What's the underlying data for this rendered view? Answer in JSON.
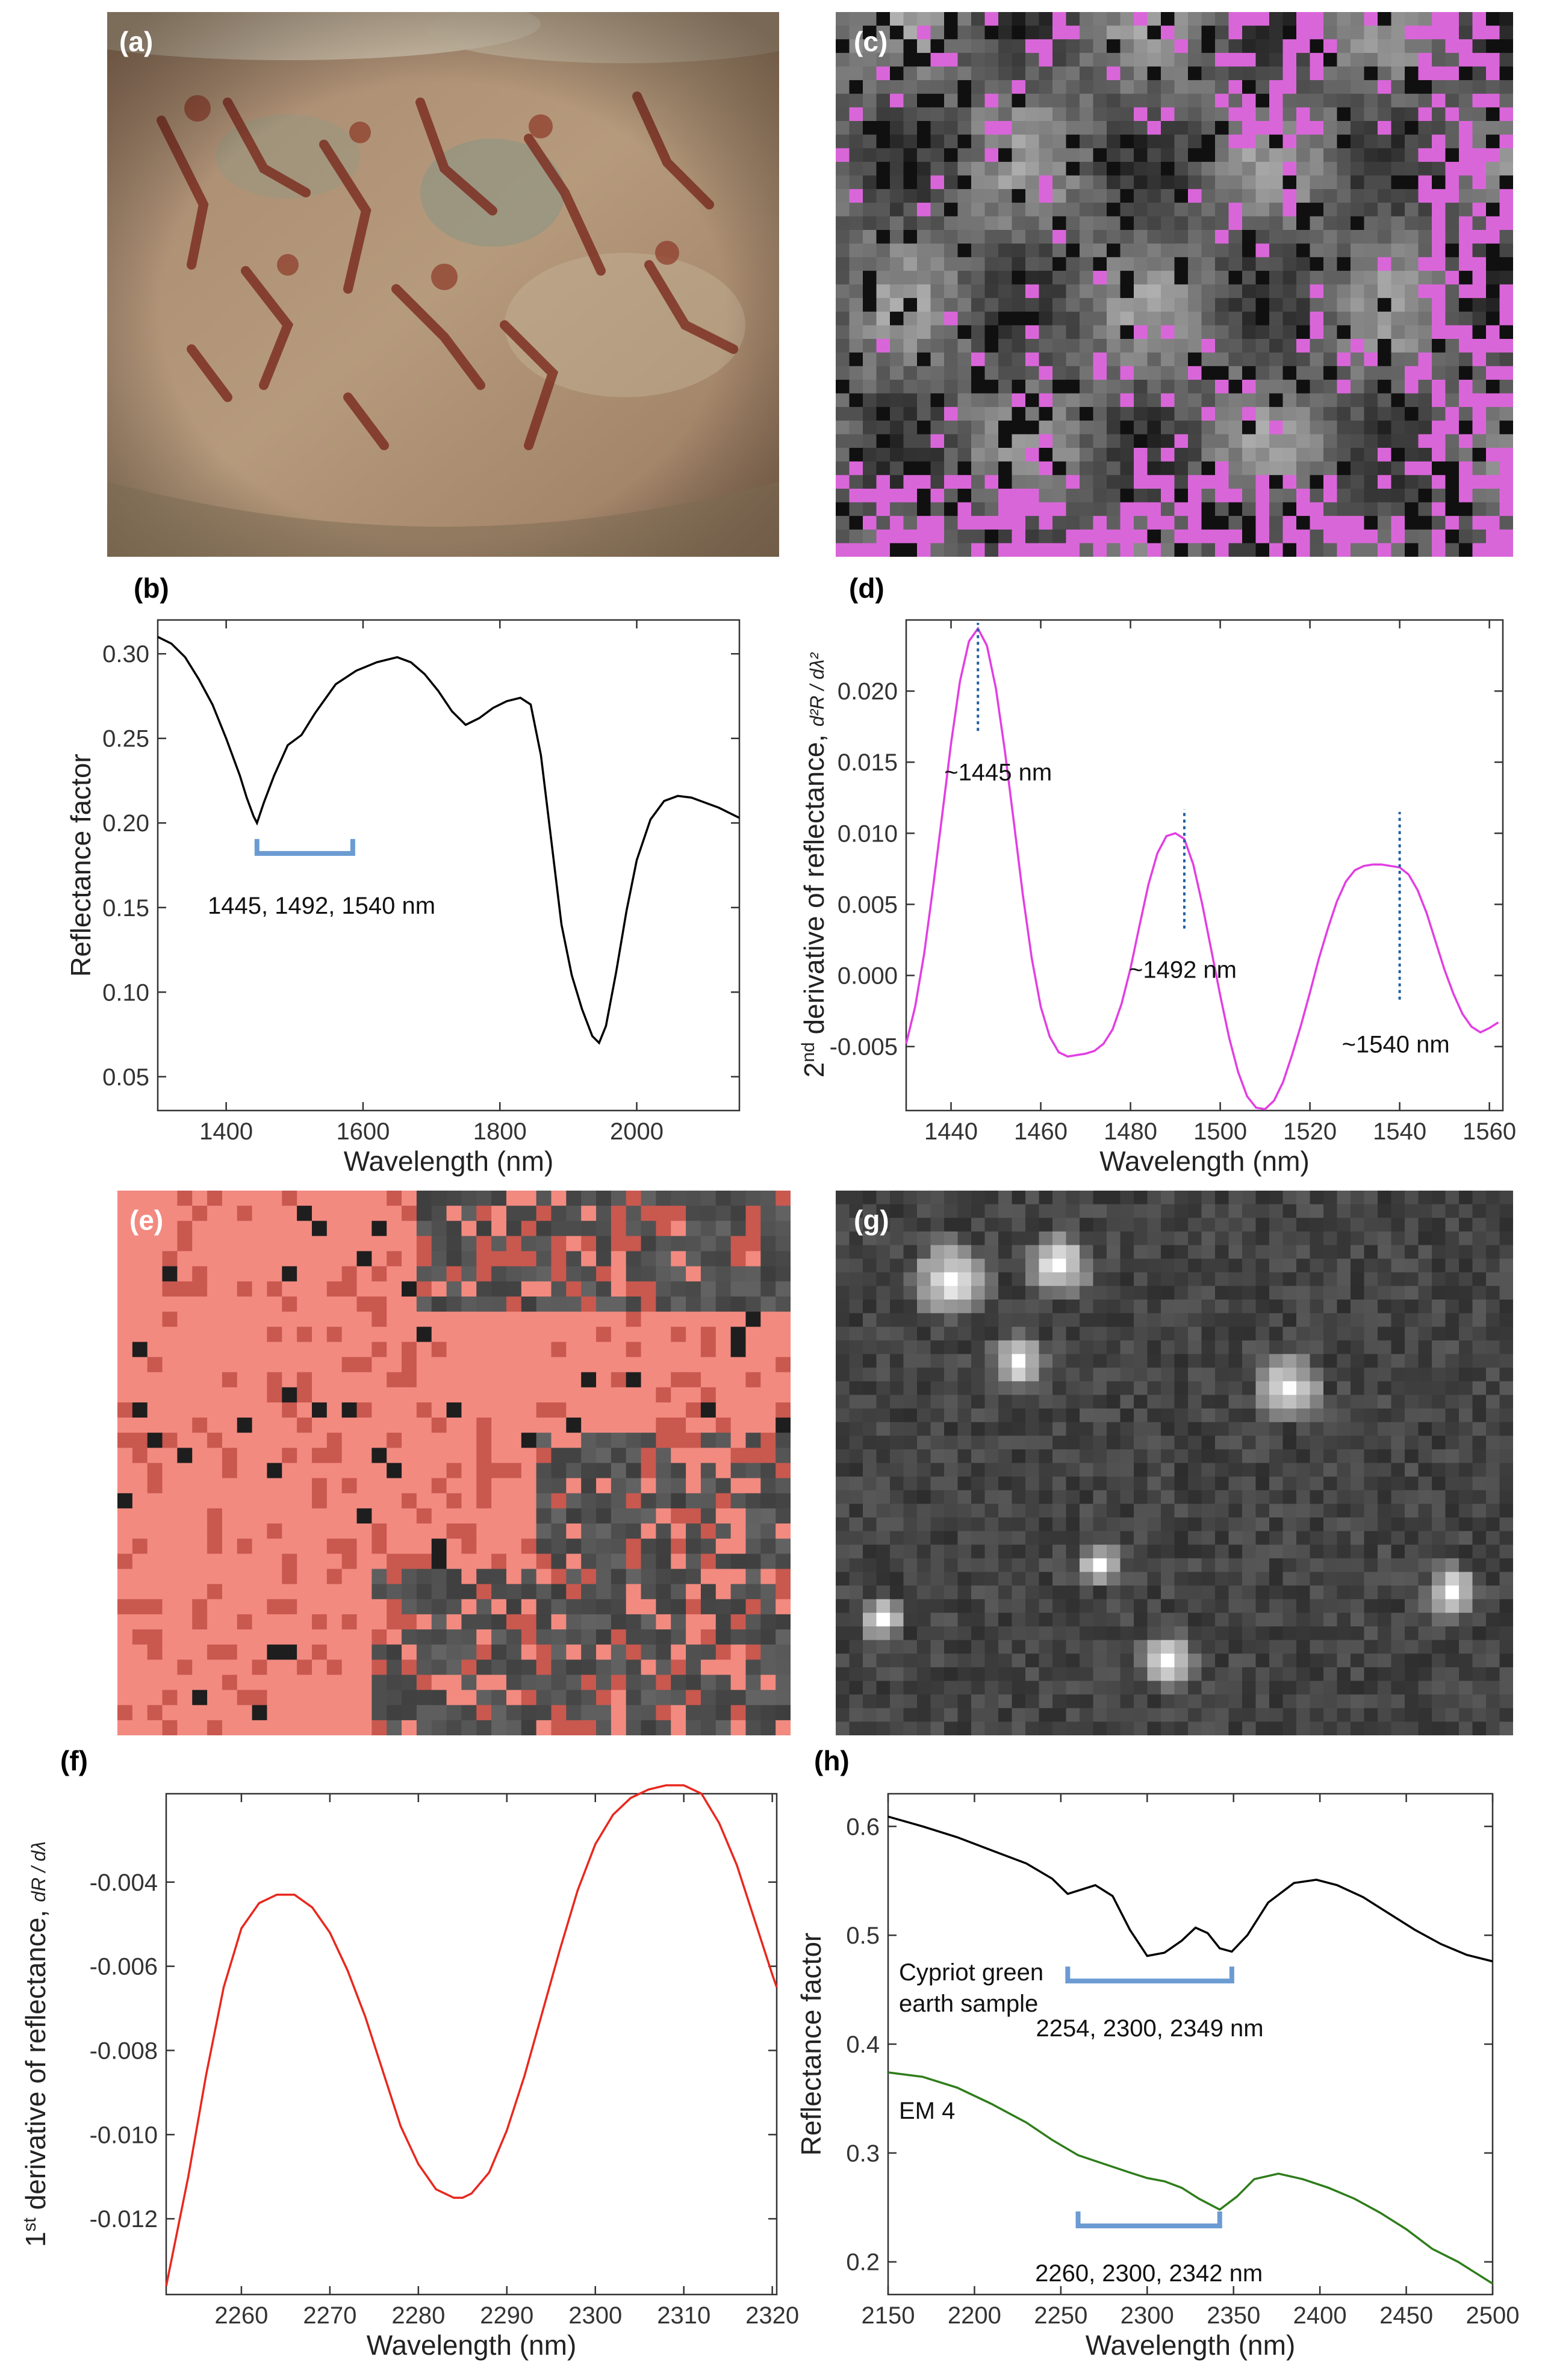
{
  "panels": {
    "a": "(a)",
    "b": "(b)",
    "c": "(c)",
    "d": "(d)",
    "e": "(e)",
    "f": "(f)",
    "g": "(g)",
    "h": "(h)"
  },
  "colors": {
    "b_line": "#000000",
    "d_line": "#e23ee2",
    "d_marker": "#1f5fa0",
    "f_line": "#e8281e",
    "h_line1": "#000000",
    "h_line2": "#2e7d1a",
    "bracket": "#6b9bd2",
    "magenta_overlay": "#d966d9",
    "red_overlay": "#f28a80"
  },
  "chart_data": [
    {
      "panel": "b",
      "type": "line",
      "xlabel": "Wavelength (nm)",
      "ylabel": "Reflectance factor",
      "xlim": [
        1300,
        2150
      ],
      "ylim": [
        0.03,
        0.32
      ],
      "xticks": [
        1400,
        1600,
        1800,
        2000
      ],
      "yticks": [
        0.05,
        0.1,
        0.15,
        0.2,
        0.25,
        0.3
      ],
      "ytick_labels": [
        "0.05",
        "0.10",
        "0.15",
        "0.20",
        "0.25",
        "0.30"
      ],
      "series": [
        {
          "x": [
            1300,
            1320,
            1340,
            1360,
            1380,
            1400,
            1420,
            1430,
            1440,
            1445,
            1455,
            1470,
            1490,
            1510,
            1530,
            1560,
            1590,
            1620,
            1650,
            1670,
            1690,
            1710,
            1730,
            1750,
            1770,
            1790,
            1810,
            1830,
            1845,
            1860,
            1875,
            1890,
            1905,
            1920,
            1935,
            1945,
            1955,
            1970,
            1985,
            2000,
            2020,
            2040,
            2060,
            2080,
            2100,
            2120,
            2150
          ],
          "y": [
            0.31,
            0.306,
            0.298,
            0.285,
            0.27,
            0.25,
            0.228,
            0.215,
            0.204,
            0.2,
            0.212,
            0.228,
            0.246,
            0.252,
            0.265,
            0.282,
            0.29,
            0.295,
            0.298,
            0.295,
            0.288,
            0.278,
            0.266,
            0.258,
            0.262,
            0.268,
            0.272,
            0.274,
            0.27,
            0.24,
            0.19,
            0.14,
            0.11,
            0.09,
            0.074,
            0.07,
            0.08,
            0.112,
            0.148,
            0.178,
            0.202,
            0.213,
            0.216,
            0.215,
            0.212,
            0.209,
            0.203
          ]
        }
      ],
      "annotations": [
        {
          "text": "1445, 1492, 1540 nm",
          "bracket_x": [
            1445,
            1585
          ],
          "bracket_y": 0.182
        }
      ]
    },
    {
      "panel": "d",
      "type": "line",
      "xlabel": "Wavelength (nm)",
      "ylabel_prefix": "2",
      "ylabel_sup": "nd",
      "ylabel_rest": " derivative of reflectance, ",
      "ylabel_fraction": "d²R / dλ²",
      "xlim": [
        1430,
        1563
      ],
      "ylim": [
        -0.0095,
        0.025
      ],
      "xticks": [
        1440,
        1460,
        1480,
        1500,
        1520,
        1540,
        1560
      ],
      "yticks": [
        -0.005,
        0.0,
        0.005,
        0.01,
        0.015,
        0.02
      ],
      "ytick_labels": [
        "-0.005",
        "0.000",
        "0.005",
        "0.010",
        "0.015",
        "0.020"
      ],
      "series": [
        {
          "x": [
            1430,
            1432,
            1434,
            1436,
            1438,
            1440,
            1442,
            1444,
            1446,
            1448,
            1450,
            1452,
            1454,
            1456,
            1458,
            1460,
            1462,
            1464,
            1466,
            1468,
            1470,
            1472,
            1474,
            1476,
            1478,
            1480,
            1482,
            1484,
            1486,
            1488,
            1490,
            1492,
            1494,
            1496,
            1498,
            1500,
            1502,
            1504,
            1506,
            1508,
            1510,
            1512,
            1514,
            1516,
            1518,
            1520,
            1522,
            1524,
            1526,
            1528,
            1530,
            1532,
            1534,
            1536,
            1538,
            1540,
            1542,
            1544,
            1546,
            1548,
            1550,
            1552,
            1554,
            1556,
            1558,
            1560,
            1562
          ],
          "y": [
            -0.0048,
            -0.0022,
            0.0015,
            0.0062,
            0.0112,
            0.0163,
            0.0207,
            0.0235,
            0.0244,
            0.0232,
            0.0202,
            0.0158,
            0.0108,
            0.0057,
            0.0012,
            -0.0022,
            -0.0043,
            -0.0054,
            -0.0057,
            -0.0056,
            -0.0055,
            -0.0053,
            -0.0048,
            -0.0038,
            -0.002,
            0.0005,
            0.0035,
            0.0064,
            0.0086,
            0.0098,
            0.01,
            0.0096,
            0.0078,
            0.005,
            0.0018,
            -0.0014,
            -0.0044,
            -0.0068,
            -0.0085,
            -0.0093,
            -0.0094,
            -0.0088,
            -0.0075,
            -0.0056,
            -0.0035,
            -0.0012,
            0.0012,
            0.0033,
            0.0052,
            0.0066,
            0.0074,
            0.0077,
            0.0078,
            0.0078,
            0.0077,
            0.0076,
            0.0071,
            0.006,
            0.0044,
            0.0024,
            0.0004,
            -0.0013,
            -0.0027,
            -0.0036,
            -0.004,
            -0.0037,
            -0.0033
          ]
        }
      ],
      "markers": [
        {
          "x": 1446,
          "y_from": 0.0172,
          "y_to": 0.0248,
          "label": "~1445 nm"
        },
        {
          "x": 1492,
          "y_from": 0.0033,
          "y_to": 0.0117,
          "label": "~1492 nm"
        },
        {
          "x": 1540,
          "y_from": -0.0017,
          "y_to": 0.0115,
          "label": "~1540 nm"
        }
      ]
    },
    {
      "panel": "f",
      "type": "line",
      "xlabel": "Wavelength (nm)",
      "ylabel_prefix": "1",
      "ylabel_sup": "st",
      "ylabel_rest": " derivative of reflectance, ",
      "ylabel_fraction": "dR / dλ",
      "xlim": [
        2251.5,
        2320.5
      ],
      "ylim": [
        -0.0138,
        -0.0019
      ],
      "xticks": [
        2260,
        2270,
        2280,
        2290,
        2300,
        2310,
        2320
      ],
      "yticks": [
        -0.012,
        -0.01,
        -0.008,
        -0.006,
        -0.004
      ],
      "ytick_labels": [
        "-0.012",
        "-0.010",
        "-0.008",
        "-0.006",
        "-0.004"
      ],
      "series": [
        {
          "x": [
            2251.5,
            2254,
            2256,
            2258,
            2260,
            2262,
            2264,
            2266,
            2268,
            2270,
            2272,
            2274,
            2276,
            2278,
            2280,
            2282,
            2284,
            2285,
            2286,
            2288,
            2290,
            2292,
            2294,
            2296,
            2298,
            2300,
            2302,
            2304,
            2306,
            2308,
            2310,
            2312,
            2314,
            2316,
            2318,
            2320,
            2320.5
          ],
          "y": [
            -0.0136,
            -0.011,
            -0.0086,
            -0.0065,
            -0.0051,
            -0.0045,
            -0.0043,
            -0.0043,
            -0.0046,
            -0.0052,
            -0.0061,
            -0.0072,
            -0.0085,
            -0.0098,
            -0.0107,
            -0.0113,
            -0.0115,
            -0.0115,
            -0.0114,
            -0.0109,
            -0.0099,
            -0.0086,
            -0.0071,
            -0.0056,
            -0.0042,
            -0.0031,
            -0.0024,
            -0.002,
            -0.0018,
            -0.0017,
            -0.0017,
            -0.0019,
            -0.0026,
            -0.0036,
            -0.0049,
            -0.0062,
            -0.0065
          ]
        }
      ]
    },
    {
      "panel": "h",
      "type": "line",
      "xlabel": "Wavelength (nm)",
      "ylabel": "Reflectance factor",
      "xlim": [
        2150,
        2500
      ],
      "ylim": [
        0.17,
        0.63
      ],
      "xticks": [
        2150,
        2200,
        2250,
        2300,
        2350,
        2400,
        2450,
        2500
      ],
      "yticks": [
        0.2,
        0.3,
        0.4,
        0.5,
        0.6
      ],
      "ytick_labels": [
        "0.2",
        "0.3",
        "0.4",
        "0.5",
        "0.6"
      ],
      "series": [
        {
          "name": "Cypriot green earth sample",
          "x": [
            2150,
            2170,
            2190,
            2210,
            2230,
            2245,
            2254,
            2262,
            2270,
            2280,
            2290,
            2300,
            2310,
            2320,
            2328,
            2335,
            2342,
            2349,
            2358,
            2370,
            2385,
            2398,
            2410,
            2425,
            2440,
            2455,
            2470,
            2485,
            2500
          ],
          "y": [
            0.609,
            0.6,
            0.59,
            0.578,
            0.566,
            0.552,
            0.538,
            0.542,
            0.546,
            0.536,
            0.505,
            0.481,
            0.484,
            0.495,
            0.507,
            0.502,
            0.488,
            0.485,
            0.5,
            0.53,
            0.548,
            0.551,
            0.546,
            0.535,
            0.52,
            0.505,
            0.492,
            0.482,
            0.476
          ]
        },
        {
          "name": "EM 4",
          "x": [
            2150,
            2170,
            2190,
            2210,
            2230,
            2245,
            2260,
            2275,
            2290,
            2300,
            2310,
            2320,
            2330,
            2342,
            2352,
            2362,
            2376,
            2390,
            2405,
            2420,
            2435,
            2450,
            2465,
            2480,
            2490,
            2500
          ],
          "y": [
            0.374,
            0.37,
            0.36,
            0.345,
            0.328,
            0.312,
            0.298,
            0.29,
            0.282,
            0.277,
            0.274,
            0.268,
            0.258,
            0.248,
            0.26,
            0.276,
            0.281,
            0.276,
            0.268,
            0.258,
            0.245,
            0.23,
            0.212,
            0.2,
            0.19,
            0.18
          ]
        }
      ],
      "series_labels": [
        {
          "lines": [
            "Cypriot green",
            "earth sample"
          ]
        },
        {
          "lines": [
            "EM 4"
          ]
        }
      ],
      "annotations": [
        {
          "text": "2254, 2300, 2349 nm",
          "bracket_x": [
            2254,
            2349
          ],
          "bracket_y": 0.458
        },
        {
          "text": "2260, 2300, 2342 nm",
          "bracket_x": [
            2260,
            2342
          ],
          "bracket_y": 0.233
        }
      ]
    }
  ]
}
